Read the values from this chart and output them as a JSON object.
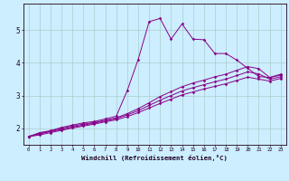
{
  "xlabel": "Windchill (Refroidissement éolien,°C)",
  "background_color": "#cceeff",
  "grid_color": "#aacccc",
  "line_color": "#880088",
  "xlim": [
    -0.5,
    23.5
  ],
  "ylim": [
    1.5,
    5.8
  ],
  "xticks": [
    0,
    1,
    2,
    3,
    4,
    5,
    6,
    7,
    8,
    9,
    10,
    11,
    12,
    13,
    14,
    15,
    16,
    17,
    18,
    19,
    20,
    21,
    22,
    23
  ],
  "yticks": [
    2,
    3,
    4,
    5
  ],
  "series": [
    [
      1.75,
      1.87,
      1.93,
      2.03,
      2.1,
      2.17,
      2.21,
      2.29,
      2.37,
      3.15,
      4.1,
      5.25,
      5.35,
      4.72,
      5.18,
      4.72,
      4.7,
      4.28,
      4.28,
      4.08,
      3.83,
      3.58,
      3.55,
      3.65
    ],
    [
      1.75,
      1.85,
      1.92,
      2.0,
      2.07,
      2.13,
      2.18,
      2.25,
      2.32,
      2.45,
      2.6,
      2.78,
      2.97,
      3.12,
      3.27,
      3.38,
      3.47,
      3.57,
      3.65,
      3.77,
      3.88,
      3.82,
      3.55,
      3.62
    ],
    [
      1.75,
      1.83,
      1.9,
      1.97,
      2.04,
      2.1,
      2.16,
      2.23,
      2.3,
      2.41,
      2.54,
      2.7,
      2.86,
      3.0,
      3.14,
      3.24,
      3.33,
      3.42,
      3.5,
      3.61,
      3.72,
      3.66,
      3.5,
      3.57
    ],
    [
      1.75,
      1.8,
      1.87,
      1.94,
      2.01,
      2.07,
      2.13,
      2.2,
      2.26,
      2.36,
      2.48,
      2.62,
      2.76,
      2.89,
      3.02,
      3.11,
      3.2,
      3.28,
      3.36,
      3.46,
      3.56,
      3.5,
      3.44,
      3.52
    ]
  ]
}
